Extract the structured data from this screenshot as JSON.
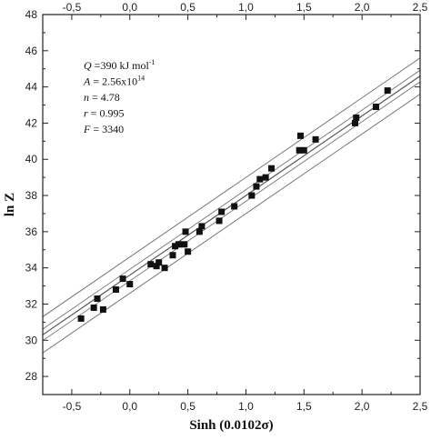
{
  "chart_data": {
    "type": "scatter",
    "xlabel": "Sinh (0.0102σ)",
    "ylabel": "ln Z",
    "xlim": [
      -0.75,
      2.5
    ],
    "ylim": [
      27,
      48
    ],
    "x_ticks": [
      -0.5,
      0.0,
      0.5,
      1.0,
      1.5,
      2.0,
      2.5
    ],
    "x_tick_labels": [
      "-0,5",
      "0,0",
      "0,5",
      "1,0",
      "1,5",
      "2,0",
      "2,5"
    ],
    "y_ticks": [
      28,
      30,
      32,
      34,
      36,
      38,
      40,
      42,
      44,
      46,
      48
    ],
    "y_tick_labels": [
      "28",
      "30",
      "32",
      "34",
      "36",
      "38",
      "40",
      "42",
      "44",
      "46",
      "48"
    ],
    "grid": false,
    "mirror_top_axis": true,
    "marker": "square",
    "annotations": [
      {
        "label": "Q",
        "value": "=390 kJ mol",
        "superscript": "-1"
      },
      {
        "label": "A",
        "value": "= 2.56x10",
        "superscript": "14"
      },
      {
        "label": "n",
        "value": "= 4.78",
        "superscript": ""
      },
      {
        "label": "r",
        "value": "= 0.995",
        "superscript": ""
      },
      {
        "label": "F",
        "value": "= 3340",
        "superscript": ""
      }
    ],
    "series": [
      {
        "x": [
          -0.42,
          -0.31,
          -0.28,
          -0.23,
          -0.12,
          -0.06,
          0.0,
          0.18,
          0.23,
          0.25,
          0.3,
          0.37,
          0.39,
          0.42,
          0.47,
          0.48,
          0.5,
          0.6,
          0.62,
          0.77,
          0.79,
          0.9,
          1.05,
          1.09,
          1.12,
          1.17,
          1.22,
          1.46,
          1.47,
          1.5,
          1.6,
          1.94,
          1.95,
          2.12,
          2.22
        ],
        "y": [
          31.2,
          31.8,
          32.3,
          31.7,
          32.8,
          33.4,
          33.1,
          34.2,
          34.1,
          34.3,
          34.0,
          34.7,
          35.2,
          35.3,
          35.3,
          36.0,
          34.9,
          36.0,
          36.3,
          36.6,
          37.1,
          37.4,
          38.0,
          38.5,
          38.9,
          39.0,
          39.5,
          40.5,
          41.3,
          40.5,
          41.1,
          42.0,
          42.3,
          42.9,
          43.8
        ]
      }
    ],
    "fit_line": {
      "x": [
        -0.75,
        2.5
      ],
      "y": [
        30.3,
        44.6
      ]
    },
    "confidence_band": {
      "x": [
        -0.75,
        2.5
      ],
      "y_lower": [
        29.98,
        44.28
      ],
      "y_upper": [
        30.62,
        44.92
      ]
    },
    "prediction_band": {
      "x": [
        -0.75,
        2.5
      ],
      "y_lower": [
        29.3,
        43.6
      ],
      "y_upper": [
        31.3,
        45.6
      ]
    },
    "colors": {
      "marker": "#111111",
      "fit_line": "#555555",
      "bands": "#777777",
      "axes": "#222222"
    }
  }
}
